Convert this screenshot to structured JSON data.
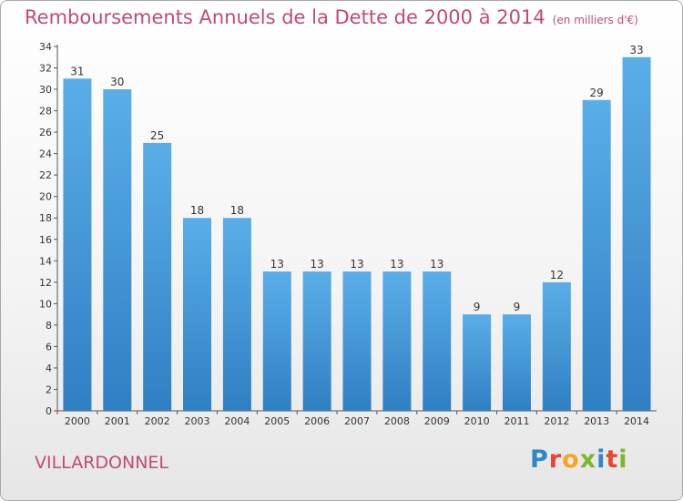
{
  "title": "Remboursements Annuels de la Dette de 2000 à 2014",
  "unit": "(en milliers d'€)",
  "commune": "VILLARDONNEL",
  "logo": {
    "text": "Proxiti",
    "letters": [
      {
        "ch": "P",
        "color": "#2f86c8"
      },
      {
        "ch": "r",
        "color": "#e8462e"
      },
      {
        "ch": "o",
        "color": "#f4a623"
      },
      {
        "ch": "x",
        "color": "#7ab829"
      },
      {
        "ch": "i",
        "color": "#2f86c8"
      },
      {
        "ch": "t",
        "color": "#e8462e"
      },
      {
        "ch": "i",
        "color": "#7ab829"
      }
    ]
  },
  "chart_data": {
    "type": "bar",
    "title": "Remboursements Annuels de la Dette de 2000 à 2014",
    "subtitle": "(en milliers d'€)",
    "xlabel": "",
    "ylabel": "",
    "categories": [
      "2000",
      "2001",
      "2002",
      "2003",
      "2004",
      "2005",
      "2006",
      "2007",
      "2008",
      "2009",
      "2010",
      "2011",
      "2012",
      "2013",
      "2014"
    ],
    "values": [
      31,
      30,
      25,
      18,
      18,
      13,
      13,
      13,
      13,
      13,
      9,
      9,
      12,
      29,
      33
    ],
    "ylim": [
      0,
      34
    ],
    "yticks": [
      0,
      2,
      4,
      6,
      8,
      10,
      12,
      14,
      16,
      18,
      20,
      22,
      24,
      26,
      28,
      30,
      32,
      34
    ],
    "grid": false,
    "bar_color": "#4a9ee0"
  }
}
